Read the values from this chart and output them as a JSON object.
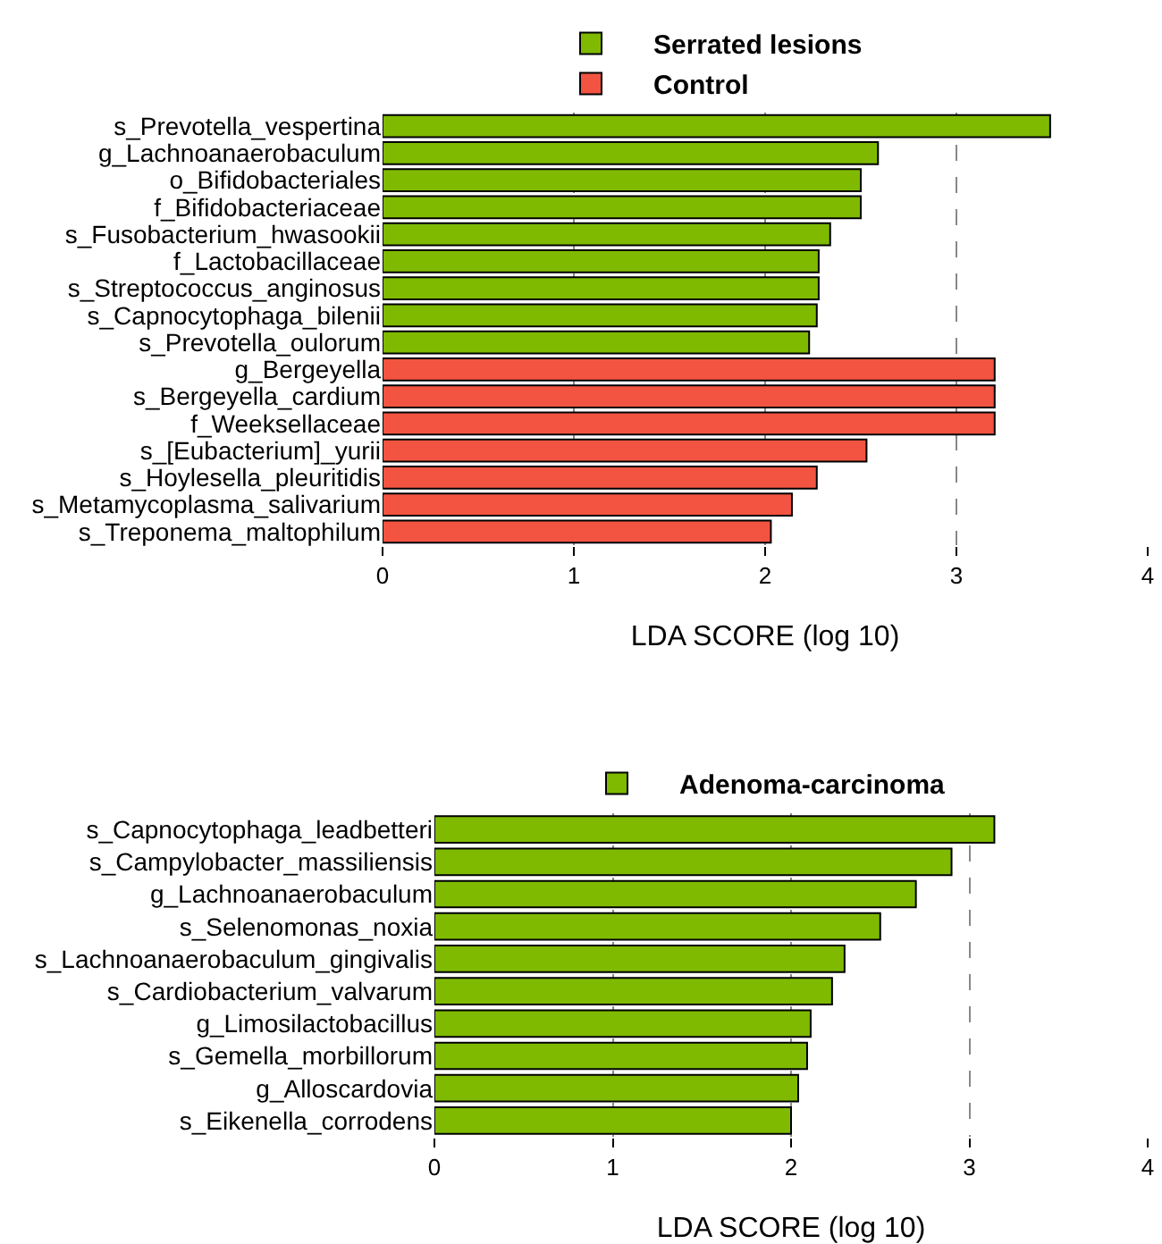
{
  "chart_data": [
    {
      "type": "bar",
      "orientation": "horizontal",
      "xlabel": "LDA SCORE (log 10)",
      "categories": [
        "s_Prevotella_vespertina",
        "g_Lachnoanaerobaculum",
        "o_Bifidobacteriales",
        "f_Bifidobacteriaceae",
        "s_Fusobacterium_hwasookii",
        "f_Lactobacillaceae",
        "s_Streptococcus_anginosus",
        "s_Capnocytophaga_bilenii",
        "s_Prevotella_oulorum",
        "g_Bergeyella",
        "s_Bergeyella_cardium",
        "f_Weeksellaceae",
        "s_[Eubacterium]_yurii",
        "s_Hoylesella_pleuritidis",
        "s_Metamycoplasma_salivarium",
        "s_Treponema_maltophilum"
      ],
      "series": [
        {
          "name": "Serrated lesions",
          "color": "#7fba00",
          "values": [
            3.49,
            2.59,
            2.5,
            2.5,
            2.34,
            2.28,
            2.28,
            2.27,
            2.23,
            null,
            null,
            null,
            null,
            null,
            null,
            null
          ]
        },
        {
          "name": "Control",
          "color": "#f25441",
          "values": [
            null,
            null,
            null,
            null,
            null,
            null,
            null,
            null,
            null,
            3.2,
            3.2,
            3.2,
            2.53,
            2.27,
            2.14,
            2.03
          ]
        }
      ],
      "xlim": [
        0,
        4
      ],
      "xticks": [
        0,
        1,
        2,
        3,
        4
      ],
      "grid": "x",
      "legend": "top"
    },
    {
      "type": "bar",
      "orientation": "horizontal",
      "xlabel": "LDA SCORE (log 10)",
      "categories": [
        "s_Capnocytophaga_leadbetteri",
        "s_Campylobacter_massiliensis",
        "g_Lachnoanaerobaculum",
        "s_Selenomonas_noxia",
        "s_Lachnoanaerobaculum_gingivalis",
        "s_Cardiobacterium_valvarum",
        "g_Limosilactobacillus",
        "s_Gemella_morbillorum",
        "g_Alloscardovia",
        "s_Eikenella_corrodens"
      ],
      "series": [
        {
          "name": "Adenoma-carcinoma",
          "color": "#7fba00",
          "values": [
            3.14,
            2.9,
            2.7,
            2.5,
            2.3,
            2.23,
            2.11,
            2.09,
            2.04,
            2.0
          ]
        }
      ],
      "xlim": [
        0,
        4
      ],
      "xticks": [
        0,
        1,
        2,
        3,
        4
      ],
      "grid": "x",
      "legend": "top"
    }
  ]
}
